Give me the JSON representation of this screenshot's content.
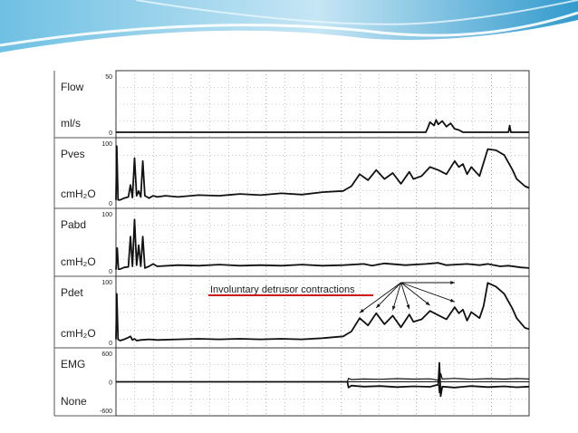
{
  "annotation": "Involuntary detrusor contractions",
  "colors": {
    "trace": "#111111",
    "grid": "#9a9a9a",
    "annotation_underline": "#d01818",
    "banner_light": "#bfe3f3",
    "banner_mid": "#5fb9e0",
    "banner_dark": "#1c8fc7"
  },
  "chart_data": {
    "type": "line",
    "title": "",
    "xlabel": "",
    "x_range": [
      0,
      100
    ],
    "grid": "dotted",
    "panels": [
      {
        "key": "flow",
        "name": "Flow",
        "unit": "ml/s",
        "ticks": [
          "50",
          "0"
        ],
        "ylim": [
          0,
          50
        ],
        "series": [
          [
            0,
            0
          ],
          [
            73,
            0
          ],
          [
            75,
            0
          ],
          [
            75.5,
            4
          ],
          [
            76,
            9
          ],
          [
            77,
            6
          ],
          [
            77.5,
            11
          ],
          [
            78,
            7
          ],
          [
            79,
            10
          ],
          [
            80,
            5
          ],
          [
            81,
            8
          ],
          [
            82,
            3
          ],
          [
            83,
            2
          ],
          [
            84,
            0
          ],
          [
            95,
            0
          ],
          [
            95.3,
            6
          ],
          [
            95.6,
            0
          ],
          [
            100,
            0
          ]
        ]
      },
      {
        "key": "pves",
        "name": "Pves",
        "unit": "cmH₂O",
        "ticks": [
          "100",
          "0"
        ],
        "ylim": [
          0,
          100
        ],
        "series": [
          [
            0,
            5
          ],
          [
            0.2,
            95
          ],
          [
            0.5,
            5
          ],
          [
            1,
            5
          ],
          [
            2,
            8
          ],
          [
            3,
            10
          ],
          [
            3.5,
            30
          ],
          [
            4,
            9
          ],
          [
            4.5,
            75
          ],
          [
            5,
            12
          ],
          [
            5.5,
            20
          ],
          [
            6,
            10
          ],
          [
            6.5,
            70
          ],
          [
            7,
            12
          ],
          [
            7.5,
            10
          ],
          [
            8,
            8
          ],
          [
            9,
            12
          ],
          [
            10,
            10
          ],
          [
            12,
            12
          ],
          [
            15,
            10
          ],
          [
            20,
            13
          ],
          [
            25,
            12
          ],
          [
            30,
            15
          ],
          [
            35,
            13
          ],
          [
            40,
            16
          ],
          [
            45,
            14
          ],
          [
            50,
            18
          ],
          [
            55,
            20
          ],
          [
            57,
            28
          ],
          [
            59,
            48
          ],
          [
            61,
            38
          ],
          [
            63,
            55
          ],
          [
            65,
            40
          ],
          [
            67,
            50
          ],
          [
            69,
            32
          ],
          [
            71,
            52
          ],
          [
            72,
            40
          ],
          [
            74,
            45
          ],
          [
            76,
            60
          ],
          [
            78,
            55
          ],
          [
            80,
            48
          ],
          [
            82,
            70
          ],
          [
            83,
            60
          ],
          [
            84,
            65
          ],
          [
            85,
            48
          ],
          [
            86,
            60
          ],
          [
            88,
            45
          ],
          [
            90,
            90
          ],
          [
            92,
            88
          ],
          [
            94,
            80
          ],
          [
            96,
            55
          ],
          [
            97,
            40
          ],
          [
            99,
            28
          ],
          [
            100,
            25
          ]
        ]
      },
      {
        "key": "pabd",
        "name": "Pabd",
        "unit": "cmH₂O",
        "ticks": [
          "100",
          "0"
        ],
        "ylim": [
          0,
          100
        ],
        "series": [
          [
            0,
            2
          ],
          [
            0.3,
            40
          ],
          [
            0.6,
            3
          ],
          [
            1,
            3
          ],
          [
            2,
            6
          ],
          [
            3,
            7
          ],
          [
            3.5,
            60
          ],
          [
            4,
            8
          ],
          [
            4.5,
            90
          ],
          [
            5,
            10
          ],
          [
            5.5,
            45
          ],
          [
            6,
            8
          ],
          [
            6.5,
            60
          ],
          [
            7,
            5
          ],
          [
            8,
            8
          ],
          [
            9,
            12
          ],
          [
            10,
            8
          ],
          [
            15,
            10
          ],
          [
            20,
            9
          ],
          [
            25,
            11
          ],
          [
            30,
            9
          ],
          [
            35,
            10
          ],
          [
            40,
            9
          ],
          [
            45,
            11
          ],
          [
            50,
            9
          ],
          [
            55,
            10
          ],
          [
            60,
            12
          ],
          [
            62,
            9
          ],
          [
            65,
            13
          ],
          [
            70,
            10
          ],
          [
            75,
            12
          ],
          [
            78,
            14
          ],
          [
            80,
            10
          ],
          [
            85,
            12
          ],
          [
            88,
            10
          ],
          [
            90,
            12
          ],
          [
            93,
            8
          ],
          [
            95,
            9
          ],
          [
            98,
            6
          ],
          [
            100,
            5
          ]
        ]
      },
      {
        "key": "pdet",
        "name": "Pdet",
        "unit": "cmH₂O",
        "ticks": [
          "100",
          "0"
        ],
        "ylim": [
          0,
          100
        ],
        "series": [
          [
            0,
            5
          ],
          [
            0.2,
            80
          ],
          [
            0.5,
            5
          ],
          [
            1,
            3
          ],
          [
            2,
            5
          ],
          [
            3,
            8
          ],
          [
            3.5,
            10
          ],
          [
            4,
            4
          ],
          [
            4.5,
            6
          ],
          [
            5,
            3
          ],
          [
            6,
            4
          ],
          [
            8,
            5
          ],
          [
            10,
            4
          ],
          [
            15,
            5
          ],
          [
            20,
            6
          ],
          [
            25,
            5
          ],
          [
            30,
            6
          ],
          [
            35,
            5
          ],
          [
            40,
            6
          ],
          [
            45,
            5
          ],
          [
            50,
            7
          ],
          [
            55,
            10
          ],
          [
            57,
            18
          ],
          [
            59,
            40
          ],
          [
            61,
            28
          ],
          [
            63,
            48
          ],
          [
            65,
            30
          ],
          [
            67,
            44
          ],
          [
            69,
            25
          ],
          [
            71,
            46
          ],
          [
            72,
            34
          ],
          [
            74,
            38
          ],
          [
            76,
            52
          ],
          [
            78,
            45
          ],
          [
            80,
            38
          ],
          [
            82,
            58
          ],
          [
            83,
            48
          ],
          [
            84,
            54
          ],
          [
            85,
            36
          ],
          [
            86,
            50
          ],
          [
            88,
            40
          ],
          [
            89,
            60
          ],
          [
            90,
            98
          ],
          [
            92,
            92
          ],
          [
            94,
            80
          ],
          [
            96,
            55
          ],
          [
            97,
            40
          ],
          [
            99,
            24
          ],
          [
            100,
            22
          ]
        ]
      },
      {
        "key": "emg",
        "name": "EMG",
        "unit": "None",
        "ticks": [
          "600",
          "0",
          "-600"
        ],
        "ylim": [
          -600,
          600
        ],
        "series": [
          [
            0,
            0
          ],
          [
            56,
            0
          ],
          [
            56.3,
            -120
          ],
          [
            57,
            -80
          ],
          [
            60,
            -100
          ],
          [
            64,
            -90
          ],
          [
            68,
            -110
          ],
          [
            72,
            -95
          ],
          [
            76,
            -105
          ],
          [
            78,
            -60
          ],
          [
            78.3,
            400
          ],
          [
            78.6,
            -300
          ],
          [
            79,
            -100
          ],
          [
            82,
            -120
          ],
          [
            86,
            -90
          ],
          [
            90,
            -110
          ],
          [
            94,
            -95
          ],
          [
            97,
            -115
          ],
          [
            100,
            -100
          ]
        ]
      }
    ]
  }
}
